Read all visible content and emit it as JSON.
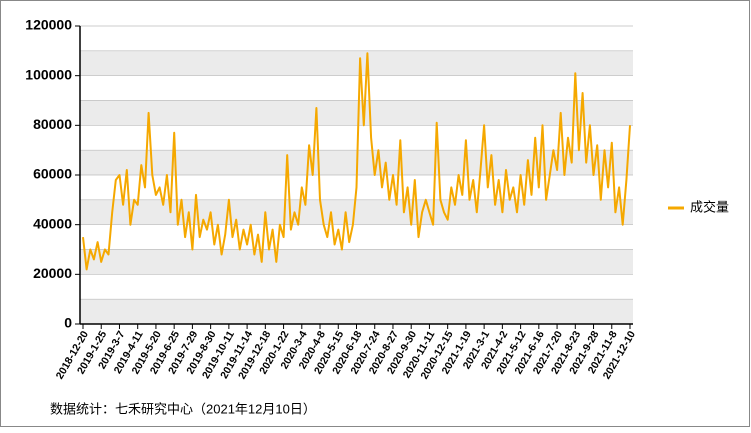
{
  "chart_data": {
    "type": "line",
    "categories": [
      "2018-12-20",
      null,
      null,
      null,
      null,
      "2019-1-25",
      null,
      null,
      null,
      null,
      "2019-3-7",
      null,
      null,
      null,
      null,
      "2019-4-11",
      null,
      null,
      null,
      null,
      "2019-5-20",
      null,
      null,
      null,
      null,
      "2019-6-25",
      null,
      null,
      null,
      null,
      "2019-7-29",
      null,
      null,
      null,
      null,
      "2019-8-30",
      null,
      null,
      null,
      null,
      "2019-10-11",
      null,
      null,
      null,
      null,
      "2019-11-14",
      null,
      null,
      null,
      null,
      "2019-12-18",
      null,
      null,
      null,
      null,
      "2020-1-22",
      null,
      null,
      null,
      null,
      "2020-3-4",
      null,
      null,
      null,
      null,
      "2020-4-8",
      null,
      null,
      null,
      null,
      "2020-5-15",
      null,
      null,
      null,
      null,
      "2020-6-18",
      null,
      null,
      null,
      null,
      "2020-7-24",
      null,
      null,
      null,
      null,
      "2020-8-27",
      null,
      null,
      null,
      null,
      "2020-9-30",
      null,
      null,
      null,
      null,
      "2020-11-11",
      null,
      null,
      null,
      null,
      "2020-12-15",
      null,
      null,
      null,
      null,
      "2021-1-19",
      null,
      null,
      null,
      null,
      "2021-3-1",
      null,
      null,
      null,
      null,
      "2021-4-2",
      null,
      null,
      null,
      null,
      "2021-5-12",
      null,
      null,
      null,
      null,
      "2021-6-16",
      null,
      null,
      null,
      null,
      "2021-7-20",
      null,
      null,
      null,
      null,
      "2021-8-23",
      null,
      null,
      null,
      null,
      "2021-9-28",
      null,
      null,
      null,
      null,
      "2021-11-8",
      null,
      null,
      null,
      null,
      "2021-12-10"
    ],
    "series": [
      {
        "name": "成交量",
        "color": "#f5a800",
        "values": [
          35000,
          22000,
          30000,
          26000,
          33000,
          25000,
          30000,
          28000,
          45000,
          58000,
          60000,
          48000,
          62000,
          40000,
          50000,
          48000,
          64000,
          55000,
          85000,
          60000,
          52000,
          55000,
          48000,
          60000,
          45000,
          77000,
          40000,
          50000,
          35000,
          45000,
          30000,
          52000,
          35000,
          42000,
          38000,
          45000,
          32000,
          40000,
          28000,
          36000,
          50000,
          35000,
          42000,
          30000,
          38000,
          32000,
          40000,
          28000,
          36000,
          25000,
          45000,
          30000,
          38000,
          25000,
          40000,
          35000,
          68000,
          38000,
          45000,
          40000,
          55000,
          48000,
          72000,
          60000,
          87000,
          50000,
          40000,
          35000,
          45000,
          32000,
          38000,
          30000,
          45000,
          33000,
          40000,
          55000,
          107000,
          80000,
          109000,
          75000,
          60000,
          70000,
          55000,
          65000,
          50000,
          60000,
          48000,
          74000,
          45000,
          55000,
          40000,
          58000,
          35000,
          45000,
          50000,
          45000,
          40000,
          81000,
          50000,
          45000,
          42000,
          55000,
          48000,
          60000,
          52000,
          74000,
          50000,
          58000,
          45000,
          62000,
          80000,
          55000,
          68000,
          48000,
          58000,
          45000,
          62000,
          50000,
          55000,
          45000,
          60000,
          48000,
          66000,
          52000,
          75000,
          55000,
          80000,
          50000,
          60000,
          70000,
          62000,
          85000,
          60000,
          75000,
          65000,
          101000,
          70000,
          93000,
          65000,
          80000,
          60000,
          72000,
          50000,
          70000,
          55000,
          73000,
          45000,
          55000,
          40000,
          58000,
          80000
        ]
      }
    ],
    "ylim": [
      0,
      120000
    ],
    "yticks": [
      0,
      20000,
      40000,
      60000,
      80000,
      100000,
      120000
    ],
    "legend": "right",
    "source": "数据统计：七禾研究中心（2021年12月10日）"
  }
}
